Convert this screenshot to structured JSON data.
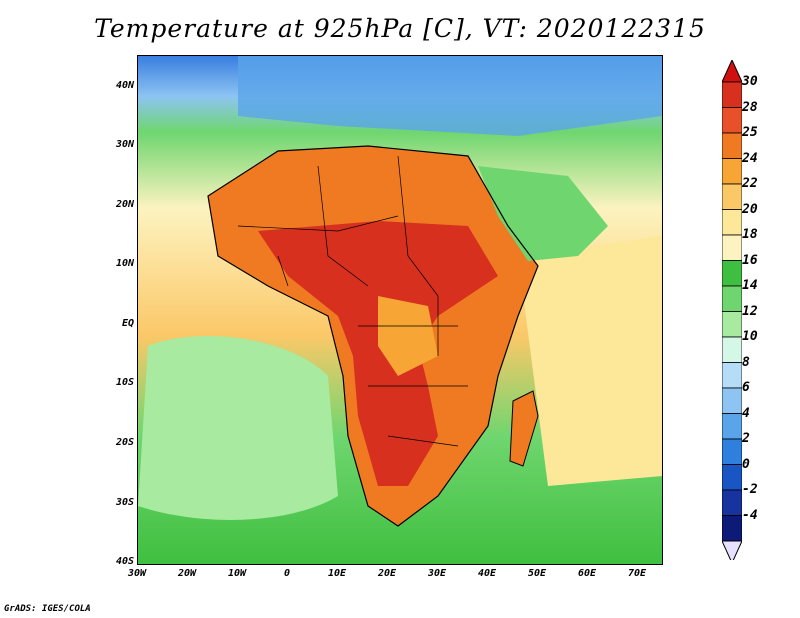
{
  "title": "Temperature at 925hPa [C], VT: 2020122315",
  "credit": "GrADS: IGES/COLA",
  "lat_labels": [
    "40N",
    "30N",
    "20N",
    "10N",
    "EQ",
    "10S",
    "20S",
    "30S",
    "40S"
  ],
  "lon_labels": [
    "30W",
    "20W",
    "10W",
    "0",
    "10E",
    "20E",
    "30E",
    "40E",
    "50E",
    "60E",
    "70E"
  ],
  "colorbar": {
    "labels": [
      "30",
      "28",
      "25",
      "24",
      "22",
      "20",
      "18",
      "16",
      "14",
      "12",
      "10",
      "8",
      "6",
      "4",
      "2",
      "0",
      "-2",
      "-4"
    ],
    "colors": [
      "#d7301f",
      "#e8502a",
      "#f07a22",
      "#f7a535",
      "#fbc868",
      "#fde89a",
      "#fcf3c0",
      "#3fbf3f",
      "#6fd66f",
      "#a7eaa0",
      "#d5f7e8",
      "#b5ddf7",
      "#8dc4f2",
      "#5aa5ea",
      "#2f7fdc",
      "#1a55c4",
      "#1733a0",
      "#0d1a78"
    ],
    "over_color": "#d01010",
    "under_color": "#e8e0ff"
  }
}
